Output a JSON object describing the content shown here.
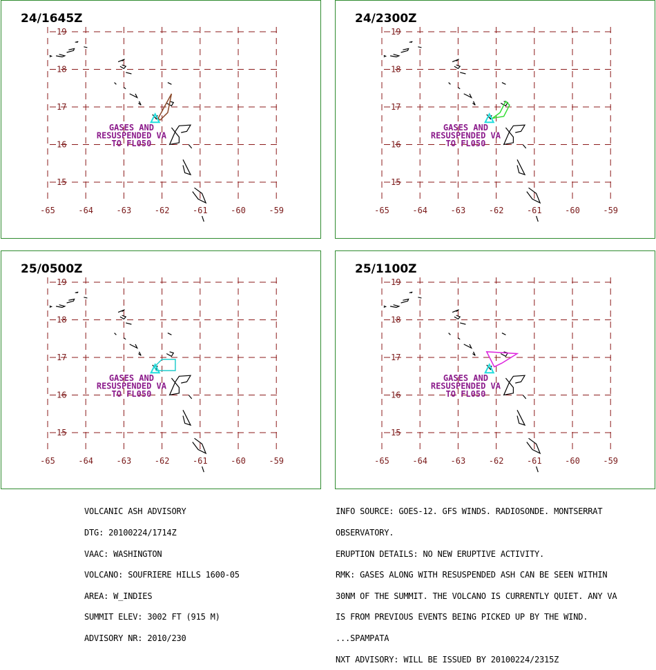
{
  "map": {
    "lon_ticks": [
      "-65",
      "-64",
      "-63",
      "-62",
      "-61",
      "-60",
      "-59"
    ],
    "lat_ticks": [
      "19",
      "18",
      "17",
      "16",
      "15"
    ],
    "grid_color": "#8b1a1a",
    "label_color": "#7a1a1a",
    "annotation_color": "#8b1a8b",
    "frame_color": "#2e8b2e"
  },
  "panels": [
    {
      "title": "24/1645Z",
      "annotation": [
        "GASES AND",
        "RESUSPENDED VA",
        "TO FL050"
      ],
      "ash_color": "#8b4a2a"
    },
    {
      "title": "24/2300Z",
      "annotation": [
        "GASES AND",
        "RESUSPENDED VA",
        "TO FL050"
      ],
      "ash_color": "#33dd33"
    },
    {
      "title": "25/0500Z",
      "annotation": [
        "GASES AND",
        "RESUSPENDED VA",
        "TO FL050"
      ],
      "ash_color": "#22cccc"
    },
    {
      "title": "25/1100Z",
      "annotation": [
        "GASES AND",
        "RESUSPENDED VA",
        "TO FL050"
      ],
      "ash_color": "#dd22dd"
    }
  ],
  "advisory_left": [
    "VOLCANIC ASH ADVISORY",
    "DTG: 20100224/1714Z",
    "VAAC: WASHINGTON",
    "VOLCANO: SOUFRIERE HILLS 1600-05",
    "AREA: W_INDIES",
    "SUMMIT ELEV: 3002 FT (915 M)",
    "ADVISORY NR: 2010/230"
  ],
  "advisory_right": [
    "INFO SOURCE: GOES-12. GFS WINDS. RADIOSONDE. MONTSERRAT",
    "OBSERVATORY.",
    "ERUPTION DETAILS: NO NEW ERUPTIVE ACTIVITY.",
    "RMK: GASES ALONG WITH RESUSPENDED ASH CAN BE SEEN WITHIN",
    "30NM OF THE SUMMIT. THE VOLCANO IS CURRENTLY QUIET. ANY VA",
    "IS FROM PREVIOUS EVENTS BEING PICKED UP BY THE WIND.",
    "...SPAMPATA",
    "NXT ADVISORY: WILL BE ISSUED BY 20100224/2315Z"
  ]
}
